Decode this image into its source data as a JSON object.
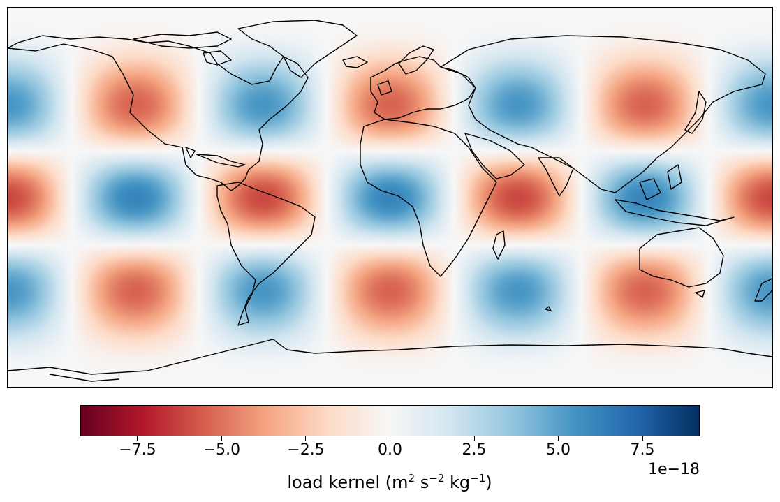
{
  "map": {
    "projection": "plate-carree",
    "field": "spherical-harmonic-pattern",
    "colormap": "RdBu",
    "lon_range": [
      -180,
      180
    ],
    "lat_range": [
      -90,
      90
    ]
  },
  "colorbar": {
    "ticks": [
      "−7.5",
      "−5.0",
      "−2.5",
      "0.0",
      "2.5",
      "5.0",
      "7.5"
    ],
    "tick_values": [
      -7.5,
      -5.0,
      -2.5,
      0.0,
      2.5,
      5.0,
      7.5
    ],
    "vmin": -9.2,
    "vmax": 9.2,
    "offset": "1e−18",
    "label_text": "load kernel (m",
    "label_exp1": "2",
    "label_mid": " s",
    "label_exp2": "−2",
    "label_mid2": " kg",
    "label_exp3": "−1",
    "label_end": ")"
  },
  "colors": {
    "dark_red": "#67001f",
    "red": "#b2182b",
    "light_red": "#f4a582",
    "white": "#f7f7f7",
    "light_blue": "#92c5de",
    "blue": "#2166ac",
    "dark_blue": "#053061"
  }
}
